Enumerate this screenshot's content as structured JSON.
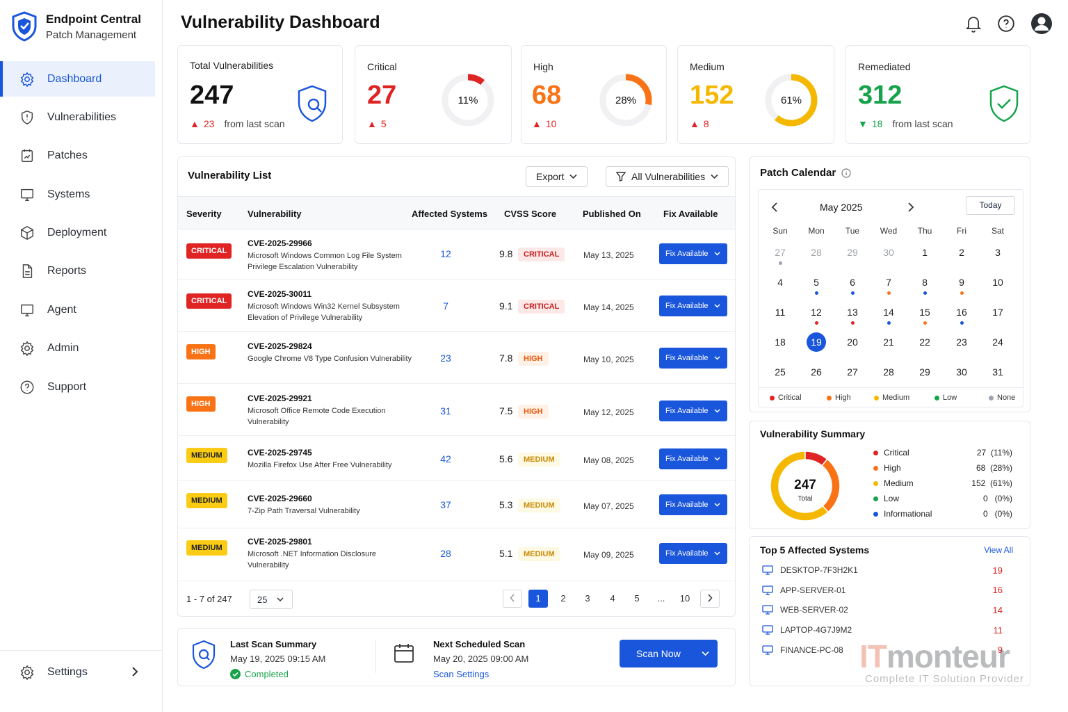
{
  "brand": {
    "name": "Endpoint Central",
    "sub": "Patch Management"
  },
  "nav": [
    {
      "label": "Dashboard",
      "icon": "gear-icon",
      "active": true
    },
    {
      "label": "Vulnerabilities",
      "icon": "shield-icon"
    },
    {
      "label": "Patches",
      "icon": "patch-icon"
    },
    {
      "label": "Systems",
      "icon": "monitor-icon"
    },
    {
      "label": "Deployment",
      "icon": "deploy-icon"
    },
    {
      "label": "Reports",
      "icon": "document-icon"
    },
    {
      "label": "Agent",
      "icon": "monitor-icon"
    },
    {
      "label": "Admin",
      "icon": "gear-icon"
    },
    {
      "label": "Support",
      "icon": "help-icon"
    }
  ],
  "settings_label": "Settings",
  "page_title": "Vulnerability Dashboard",
  "stats": {
    "total": {
      "label": "Total Vulnerabilities",
      "value": "247",
      "delta": "23",
      "sub": "from last scan"
    },
    "critical": {
      "label": "Critical",
      "value": "27",
      "delta": "5",
      "pct": "11%",
      "fraction": 0.11,
      "color": "#e02424"
    },
    "high": {
      "label": "High",
      "value": "68",
      "delta": "10",
      "pct": "28%",
      "fraction": 0.28,
      "color": "#f97316"
    },
    "medium": {
      "label": "Medium",
      "value": "152",
      "delta": "8",
      "pct": "61%",
      "fraction": 0.61,
      "color": "#f5b800"
    },
    "remediated": {
      "label": "Remediated",
      "value": "312",
      "delta": "18",
      "sub": "from last scan"
    }
  },
  "vuln_list": {
    "title": "Vulnerability List",
    "export_label": "Export",
    "filter_label": "All Vulnerabilities",
    "columns": [
      "Severity",
      "Vulnerability",
      "Affected Systems",
      "CVSS Score",
      "Published On",
      "Fix Available"
    ],
    "fix_label": "Fix Available",
    "rows": [
      {
        "sev": "CRITICAL",
        "cls": "critical",
        "id": "CVE-2025-29966",
        "desc": "Microsoft Windows Common Log File System Privilege Escalation Vulnerability",
        "affected": "12",
        "score": "9.8",
        "date": "May 13, 2025"
      },
      {
        "sev": "CRITICAL",
        "cls": "critical",
        "id": "CVE-2025-30011",
        "desc": "Microsoft Windows Win32 Kernel Subsystem Elevation of Privilege Vulnerability",
        "affected": "7",
        "score": "9.1",
        "date": "May 14, 2025"
      },
      {
        "sev": "HIGH",
        "cls": "high",
        "id": "CVE-2025-29824",
        "desc": "Google Chrome V8 Type Confusion Vulnerability",
        "affected": "23",
        "score": "7.8",
        "date": "May 10, 2025"
      },
      {
        "sev": "HIGH",
        "cls": "high",
        "id": "CVE-2025-29921",
        "desc": "Microsoft Office Remote Code Execution Vulnerability",
        "affected": "31",
        "score": "7.5",
        "date": "May 12, 2025"
      },
      {
        "sev": "MEDIUM",
        "cls": "medium",
        "id": "CVE-2025-29745",
        "desc": "Mozilla Firefox Use After Free Vulnerability",
        "affected": "42",
        "score": "5.6",
        "date": "May 08, 2025"
      },
      {
        "sev": "MEDIUM",
        "cls": "medium",
        "id": "CVE-2025-29660",
        "desc": "7-Zip Path Traversal Vulnerability",
        "affected": "37",
        "score": "5.3",
        "date": "May 07, 2025"
      },
      {
        "sev": "MEDIUM",
        "cls": "medium",
        "id": "CVE-2025-29801",
        "desc": "Microsoft .NET Information Disclosure Vulnerability",
        "affected": "28",
        "score": "5.1",
        "date": "May 09, 2025"
      }
    ],
    "range": "1 - 7 of 247",
    "per_page": "25",
    "pages": [
      "1",
      "2",
      "3",
      "4",
      "5",
      "...",
      "10"
    ]
  },
  "scan": {
    "last_title": "Last Scan Summary",
    "last_time": "May 19, 2025 09:15 AM",
    "status": "Completed",
    "next_title": "Next Scheduled Scan",
    "next_time": "May 20, 2025 09:00 AM",
    "settings_link": "Scan Settings",
    "button": "Scan Now"
  },
  "calendar": {
    "title": "Patch Calendar",
    "month": "May 2025",
    "today": "Today",
    "weekdays": [
      "Sun",
      "Mon",
      "Tue",
      "Wed",
      "Thu",
      "Fri",
      "Sat"
    ],
    "weeks": [
      [
        {
          "d": "27",
          "muted": true,
          "dot": "#9ca3af"
        },
        {
          "d": "28",
          "muted": true
        },
        {
          "d": "29",
          "muted": true
        },
        {
          "d": "30",
          "muted": true
        },
        {
          "d": "1"
        },
        {
          "d": "2"
        },
        {
          "d": "3"
        }
      ],
      [
        {
          "d": "4"
        },
        {
          "d": "5",
          "dot": "#1a56db"
        },
        {
          "d": "6",
          "dot": "#1a56db"
        },
        {
          "d": "7",
          "dot": "#f97316"
        },
        {
          "d": "8",
          "dot": "#1a56db"
        },
        {
          "d": "9",
          "dot": "#f97316"
        },
        {
          "d": "10"
        }
      ],
      [
        {
          "d": "11"
        },
        {
          "d": "12",
          "dot": "#e02424"
        },
        {
          "d": "13",
          "dot": "#e02424"
        },
        {
          "d": "14",
          "dot": "#1a56db"
        },
        {
          "d": "15",
          "dot": "#f97316"
        },
        {
          "d": "16",
          "dot": "#1a56db"
        },
        {
          "d": "17"
        }
      ],
      [
        {
          "d": "18"
        },
        {
          "d": "19",
          "selected": true
        },
        {
          "d": "20"
        },
        {
          "d": "21"
        },
        {
          "d": "22"
        },
        {
          "d": "23"
        },
        {
          "d": "24"
        }
      ],
      [
        {
          "d": "25"
        },
        {
          "d": "26"
        },
        {
          "d": "27"
        },
        {
          "d": "28"
        },
        {
          "d": "29"
        },
        {
          "d": "30"
        },
        {
          "d": "31"
        }
      ]
    ],
    "legend": [
      {
        "label": "Critical",
        "color": "#e02424"
      },
      {
        "label": "High",
        "color": "#f97316"
      },
      {
        "label": "Medium",
        "color": "#f5b800"
      },
      {
        "label": "Low",
        "color": "#16a34a"
      },
      {
        "label": "None",
        "color": "#9ca3af"
      }
    ]
  },
  "summary": {
    "title": "Vulnerability Summary",
    "total": "247",
    "total_label": "Total",
    "items": [
      {
        "label": "Critical",
        "value": "27  (11%)",
        "color": "#e02424",
        "count": 27
      },
      {
        "label": "High",
        "value": "68  (28%)",
        "color": "#f97316",
        "count": 68
      },
      {
        "label": "Medium",
        "value": "152  (61%)",
        "color": "#f5b800",
        "count": 152
      },
      {
        "label": "Low",
        "value": "0   (0%)",
        "color": "#16a34a",
        "count": 0
      },
      {
        "label": "Informational",
        "value": "0   (0%)",
        "color": "#1a56db",
        "count": 0
      }
    ]
  },
  "top_systems": {
    "title": "Top 5 Affected Systems",
    "view_all": "View All",
    "items": [
      {
        "name": "DESKTOP-7F3H2K1",
        "count": "19"
      },
      {
        "name": "APP-SERVER-01",
        "count": "16"
      },
      {
        "name": "WEB-SERVER-02",
        "count": "14"
      },
      {
        "name": "LAPTOP-4G7J9M2",
        "count": "11"
      },
      {
        "name": "FINANCE-PC-08",
        "count": "9"
      }
    ]
  },
  "watermark": {
    "name": "ITmonteur",
    "tagline": "Complete IT Solution Provider"
  }
}
